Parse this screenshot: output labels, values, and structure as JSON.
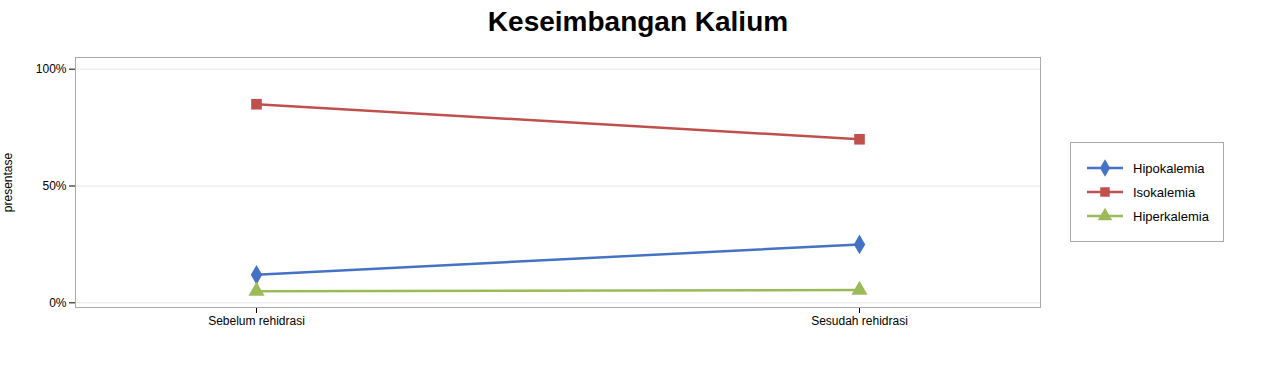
{
  "chart_data": {
    "type": "line",
    "title": "Keseimbangan Kalium",
    "ylabel": "presentase",
    "categories": [
      "Sebelum rehidrasi",
      "Sesudah rehidrasi"
    ],
    "series": [
      {
        "name": "Hipokalemia",
        "color": "#4472C4",
        "marker": "diamond",
        "values": [
          0.12,
          0.25
        ]
      },
      {
        "name": "Isokalemia",
        "color": "#C0504D",
        "marker": "square",
        "values": [
          0.85,
          0.7
        ]
      },
      {
        "name": "Hiperkalemia",
        "color": "#9BBB59",
        "marker": "triangle",
        "values": [
          0.05,
          0.055
        ]
      }
    ],
    "ylim": [
      -0.02,
      1.05
    ],
    "yticks": [
      {
        "value": 0,
        "label": "0%"
      },
      {
        "value": 0.5,
        "label": "50%"
      },
      {
        "value": 1.0,
        "label": "100%"
      }
    ],
    "grid": true,
    "legend": "right"
  }
}
